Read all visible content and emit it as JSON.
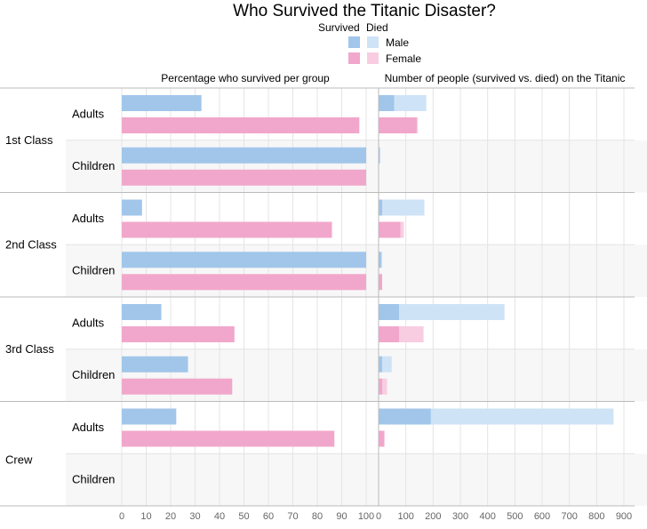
{
  "title": "Who Survived the Titanic Disaster?",
  "legend": {
    "survived_label": "Survived",
    "died_label": "Died",
    "male_label": "Male",
    "female_label": "Female"
  },
  "panels": {
    "left_title": "Percentage who survived per group",
    "right_title": "Number of people (survived vs. died) on the Titanic"
  },
  "colors": {
    "male_survived": "#a1c6ea",
    "male_died": "#cfe3f7",
    "female_survived": "#f1a7cb",
    "female_died": "#f8cde2",
    "alt_row_bg": "#f7f7f7",
    "grid": "#e4e4e4",
    "separator": "#bbbbbb"
  },
  "chart_data": [
    {
      "type": "bar",
      "title": "Percentage who survived per group",
      "orientation": "horizontal",
      "xlim": [
        0,
        100
      ],
      "x_ticks": [
        "0",
        "10",
        "20",
        "30",
        "40",
        "50",
        "60",
        "70",
        "80",
        "90",
        "100"
      ],
      "groups": [
        {
          "class": "1st Class",
          "age": "Adults",
          "male": 32.6,
          "female": 97.2
        },
        {
          "class": "1st Class",
          "age": "Children",
          "male": 100,
          "female": 100
        },
        {
          "class": "2nd Class",
          "age": "Adults",
          "male": 8.3,
          "female": 86
        },
        {
          "class": "2nd Class",
          "age": "Children",
          "male": 100,
          "female": 100
        },
        {
          "class": "3rd Class",
          "age": "Adults",
          "male": 16.2,
          "female": 46.1
        },
        {
          "class": "3rd Class",
          "age": "Children",
          "male": 27.1,
          "female": 45.2
        },
        {
          "class": "Crew",
          "age": "Adults",
          "male": 22.3,
          "female": 87
        },
        {
          "class": "Crew",
          "age": "Children",
          "male": null,
          "female": null
        }
      ]
    },
    {
      "type": "bar",
      "title": "Number of people (survived vs. died) on the Titanic",
      "orientation": "horizontal",
      "stacked": true,
      "xlim": [
        0,
        900
      ],
      "x_ticks": [
        "0",
        "100",
        "200",
        "300",
        "400",
        "500",
        "600",
        "700",
        "800",
        "900"
      ],
      "groups": [
        {
          "class": "1st Class",
          "age": "Adults",
          "male_survived": 57,
          "male_died": 118,
          "female_survived": 140,
          "female_died": 4
        },
        {
          "class": "1st Class",
          "age": "Children",
          "male_survived": 5,
          "male_died": 0,
          "female_survived": 1,
          "female_died": 0
        },
        {
          "class": "2nd Class",
          "age": "Adults",
          "male_survived": 14,
          "male_died": 154,
          "female_survived": 80,
          "female_died": 13
        },
        {
          "class": "2nd Class",
          "age": "Children",
          "male_survived": 11,
          "male_died": 0,
          "female_survived": 13,
          "female_died": 0
        },
        {
          "class": "3rd Class",
          "age": "Adults",
          "male_survived": 75,
          "male_died": 387,
          "female_survived": 76,
          "female_died": 89
        },
        {
          "class": "3rd Class",
          "age": "Children",
          "male_survived": 13,
          "male_died": 35,
          "female_survived": 14,
          "female_died": 17
        },
        {
          "class": "Crew",
          "age": "Adults",
          "male_survived": 192,
          "male_died": 670,
          "female_survived": 20,
          "female_died": 3
        },
        {
          "class": "Crew",
          "age": "Children",
          "male_survived": 0,
          "male_died": 0,
          "female_survived": 0,
          "female_died": 0
        }
      ]
    }
  ]
}
